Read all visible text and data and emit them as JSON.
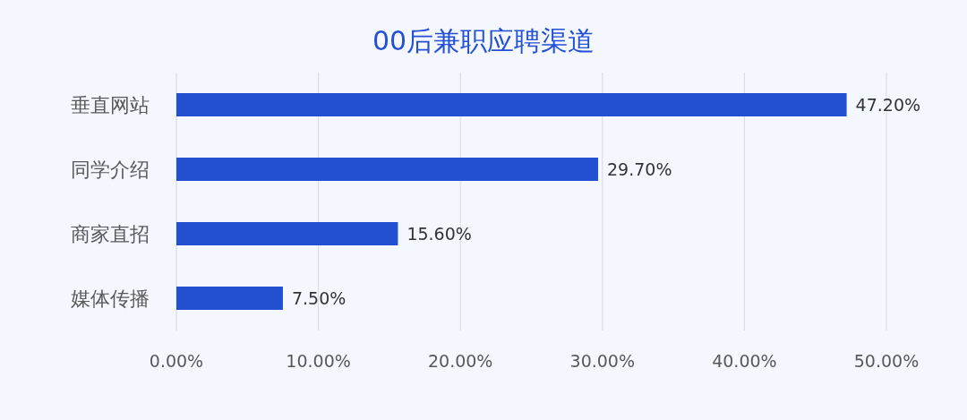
{
  "chart_data": {
    "type": "bar",
    "orientation": "horizontal",
    "title": "00后兼职应聘渠道",
    "categories": [
      "垂直网站",
      "同学介绍",
      "商家直招",
      "媒体传播"
    ],
    "values": [
      47.2,
      29.7,
      15.6,
      7.5
    ],
    "value_labels": [
      "47.20%",
      "29.70%",
      "15.60%",
      "7.50%"
    ],
    "color": "#234fd1",
    "xlim": [
      0,
      50
    ],
    "xticks": [
      {
        "value": 0,
        "label": "0.00%"
      },
      {
        "value": 10,
        "label": "10.00%"
      },
      {
        "value": 20,
        "label": "20.00%"
      },
      {
        "value": 30,
        "label": "30.00%"
      },
      {
        "value": 40,
        "label": "40.00%"
      },
      {
        "value": 50,
        "label": "50.00%"
      }
    ],
    "grid": "x"
  }
}
